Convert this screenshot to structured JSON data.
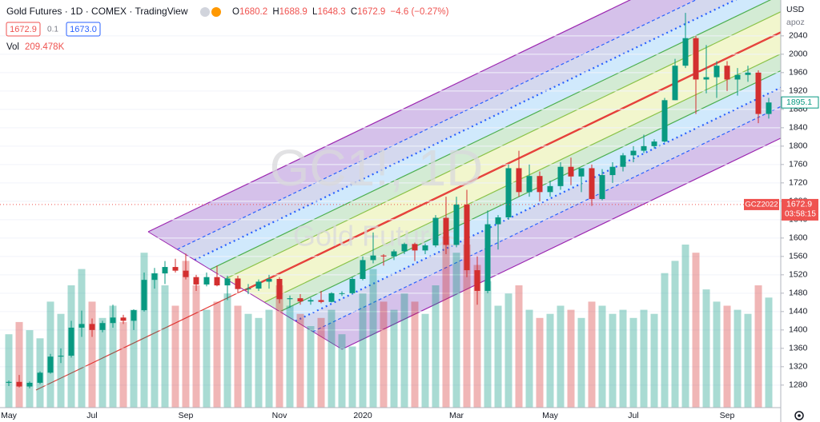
{
  "header": {
    "title": "Gold Futures · 1D · COMEX · TradingView",
    "ohlc": [
      {
        "k": "O",
        "v": "1680.2"
      },
      {
        "k": "H",
        "v": "1688.9"
      },
      {
        "k": "L",
        "v": "1648.3"
      },
      {
        "k": "C",
        "v": "1672.9"
      }
    ],
    "change": "−4.6 (−0.27%)",
    "sell": "1672.9",
    "spread": "0.1",
    "buy": "1673.0",
    "vol_label": "Vol",
    "vol_value": "209.478K",
    "currency": "USD",
    "scale_mode": "apoz",
    "watermark_symbol": "GC1!, 1D",
    "watermark_name": "Gold Futures"
  },
  "chart_data": {
    "type": "candlestick",
    "categories": [
      "May",
      null,
      null,
      null,
      null,
      null,
      null,
      null,
      "Jul",
      null,
      null,
      null,
      null,
      null,
      null,
      null,
      null,
      "Sep",
      null,
      null,
      null,
      null,
      null,
      null,
      null,
      null,
      "Nov",
      null,
      null,
      null,
      null,
      null,
      null,
      null,
      "2020",
      null,
      null,
      null,
      null,
      null,
      null,
      null,
      null,
      "Mar",
      null,
      null,
      null,
      null,
      null,
      null,
      null,
      null,
      "May",
      null,
      null,
      null,
      null,
      null,
      null,
      null,
      "Jul",
      null,
      null,
      null,
      null,
      null,
      null,
      null,
      null,
      "Sep",
      null,
      null,
      null,
      null
    ],
    "open": [
      1285,
      1287,
      1277,
      1285,
      1307,
      1342,
      1344,
      1405,
      1413,
      1400,
      1415,
      1427,
      1420,
      1443,
      1509,
      1523,
      1537,
      1529,
      1515,
      1499,
      1515,
      1497,
      1512,
      1489,
      1490,
      1505,
      1511,
      1467,
      1469,
      1462,
      1465,
      1461,
      1480,
      1480,
      1511,
      1552,
      1562,
      1560,
      1571,
      1587,
      1573,
      1584,
      1644,
      1585,
      1673,
      1530,
      1485,
      1630,
      1645,
      1752,
      1700,
      1735,
      1700,
      1713,
      1755,
      1734,
      1752,
      1685,
      1737,
      1755,
      1780,
      1790,
      1800,
      1810,
      1900,
      1975,
      2035,
      1945,
      1950,
      1975,
      1945,
      1955,
      1960,
      1870
    ],
    "high": [
      1290,
      1302,
      1288,
      1310,
      1348,
      1360,
      1420,
      1442,
      1425,
      1420,
      1455,
      1433,
      1445,
      1525,
      1535,
      1550,
      1555,
      1566,
      1520,
      1525,
      1540,
      1518,
      1518,
      1500,
      1510,
      1520,
      1515,
      1475,
      1478,
      1470,
      1485,
      1482,
      1484,
      1515,
      1560,
      1612,
      1565,
      1575,
      1590,
      1590,
      1588,
      1650,
      1690,
      1690,
      1705,
      1560,
      1660,
      1650,
      1760,
      1790,
      1760,
      1745,
      1725,
      1765,
      1775,
      1750,
      1760,
      1750,
      1765,
      1785,
      1800,
      1825,
      1815,
      1905,
      1990,
      2090,
      2040,
      2020,
      1985,
      1985,
      1970,
      1975,
      1965,
      1905
    ],
    "low": [
      1278,
      1275,
      1273,
      1282,
      1305,
      1328,
      1340,
      1385,
      1385,
      1395,
      1405,
      1413,
      1400,
      1440,
      1490,
      1500,
      1525,
      1510,
      1485,
      1495,
      1495,
      1465,
      1480,
      1478,
      1485,
      1490,
      1458,
      1448,
      1455,
      1455,
      1458,
      1460,
      1474,
      1478,
      1508,
      1545,
      1540,
      1552,
      1565,
      1550,
      1565,
      1580,
      1565,
      1580,
      1515,
      1455,
      1480,
      1575,
      1640,
      1690,
      1690,
      1680,
      1690,
      1705,
      1715,
      1700,
      1670,
      1682,
      1720,
      1745,
      1765,
      1785,
      1795,
      1808,
      1900,
      1970,
      1870,
      1915,
      1905,
      1920,
      1910,
      1940,
      1850,
      1860
    ],
    "close": [
      1287,
      1277,
      1285,
      1307,
      1342,
      1344,
      1405,
      1413,
      1400,
      1415,
      1427,
      1420,
      1443,
      1509,
      1523,
      1537,
      1529,
      1515,
      1499,
      1515,
      1497,
      1512,
      1489,
      1490,
      1505,
      1511,
      1467,
      1469,
      1462,
      1465,
      1461,
      1480,
      1480,
      1511,
      1552,
      1562,
      1560,
      1571,
      1587,
      1573,
      1584,
      1644,
      1585,
      1673,
      1530,
      1485,
      1630,
      1645,
      1752,
      1700,
      1735,
      1700,
      1713,
      1755,
      1734,
      1752,
      1685,
      1737,
      1755,
      1780,
      1790,
      1800,
      1810,
      1900,
      1975,
      2035,
      1945,
      1950,
      1975,
      1945,
      1955,
      1960,
      1870,
      1895
    ],
    "volume": [
      180,
      210,
      190,
      170,
      260,
      230,
      300,
      340,
      260,
      220,
      250,
      210,
      240,
      380,
      330,
      300,
      250,
      360,
      300,
      240,
      260,
      280,
      250,
      230,
      220,
      240,
      300,
      250,
      230,
      200,
      220,
      240,
      180,
      150,
      280,
      340,
      260,
      240,
      280,
      260,
      230,
      300,
      420,
      380,
      400,
      350,
      310,
      250,
      280,
      300,
      240,
      220,
      230,
      250,
      240,
      220,
      260,
      250,
      230,
      240,
      220,
      240,
      230,
      330,
      360,
      400,
      380,
      290,
      260,
      250,
      240,
      230,
      300,
      270
    ],
    "up_color": "#089981",
    "down_color": "#d32f2f",
    "ylim": [
      1231,
      2118
    ],
    "yticks": [
      1280,
      1320,
      1360,
      1400,
      1440,
      1480,
      1520,
      1560,
      1600,
      1640,
      1680,
      1720,
      1760,
      1800,
      1840,
      1880,
      1920,
      1960,
      2000,
      2040
    ],
    "volume_lim": [
      0,
      1000
    ],
    "grid": true,
    "price_markers": [
      {
        "value": 1895.1,
        "color": "#089981"
      },
      {
        "value": 1672.9,
        "color": "#ef5350",
        "symbol": "GCZ2022",
        "countdown": "03:58:15"
      }
    ]
  }
}
